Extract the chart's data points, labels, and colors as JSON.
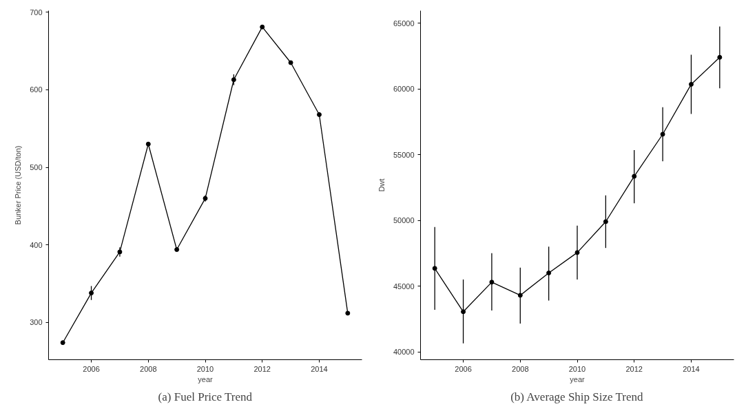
{
  "chart_data": [
    {
      "type": "line",
      "title": "(a) Fuel Price Trend",
      "xlabel": "year",
      "ylabel": "Bunker Price (USD/ton)",
      "x": [
        2005,
        2006,
        2007,
        2008,
        2009,
        2010,
        2011,
        2012,
        2013,
        2014,
        2015
      ],
      "series": [
        {
          "color": "#000000",
          "values": [
            274,
            338,
            391,
            530,
            394,
            460,
            613,
            681,
            635,
            568,
            312
          ],
          "errors": [
            null,
            [
              329,
              347
            ],
            [
              385,
              397
            ],
            null,
            null,
            [
              456,
              464
            ],
            [
              606,
              620
            ],
            null,
            null,
            [
              565,
              571
            ],
            null
          ]
        }
      ],
      "xlim": [
        2004.5,
        2015.5
      ],
      "xticks": [
        2006,
        2008,
        2010,
        2012,
        2014
      ],
      "ylim": [
        252,
        702
      ],
      "yticks": [
        300,
        400,
        500,
        600,
        700
      ],
      "marker": "circle",
      "line_style": "solid"
    },
    {
      "type": "line",
      "title": "(b) Average Ship Size Trend",
      "xlabel": "year",
      "ylabel": "Dwt",
      "x": [
        2005,
        2006,
        2007,
        2008,
        2009,
        2010,
        2011,
        2012,
        2013,
        2014,
        2015
      ],
      "series": [
        {
          "color": "#000000",
          "values": [
            46350,
            43050,
            45300,
            44300,
            46000,
            47550,
            49900,
            53350,
            56550,
            60350,
            62400
          ],
          "errors": [
            [
              43200,
              49500
            ],
            [
              40650,
              45500
            ],
            [
              43150,
              47500
            ],
            [
              42150,
              46400
            ],
            [
              43900,
              48000
            ],
            [
              45500,
              49600
            ],
            [
              47900,
              51900
            ],
            [
              51300,
              55350
            ],
            [
              54500,
              58600
            ],
            [
              58100,
              62600
            ],
            [
              60050,
              64750
            ]
          ]
        }
      ],
      "xlim": [
        2004.5,
        2015.5
      ],
      "xticks": [
        2006,
        2008,
        2010,
        2012,
        2014
      ],
      "ylim": [
        39400,
        65950
      ],
      "yticks": [
        40000,
        45000,
        50000,
        55000,
        60000,
        65000
      ],
      "marker": "circle",
      "line_style": "solid"
    }
  ]
}
